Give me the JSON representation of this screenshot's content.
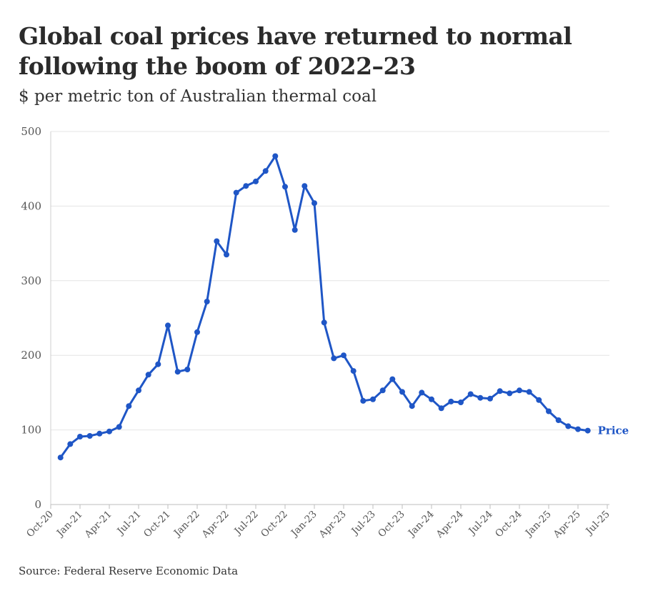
{
  "chart_data": {
    "type": "line",
    "title": "Global coal prices have returned to normal following the boom of 2022–23",
    "subtitle": "$ per metric ton of Australian thermal coal",
    "source": "Source: Federal Reserve Economic Data",
    "ylim": [
      0,
      500
    ],
    "yticks": [
      "0",
      "100",
      "200",
      "300",
      "400",
      "500"
    ],
    "xticks": [
      "Oct-20",
      "Jan-21",
      "Apr-21",
      "Jul-21",
      "Oct-21",
      "Jan-22",
      "Apr-22",
      "Jul-22",
      "Oct-22",
      "Jan-23",
      "Apr-23",
      "Jul-23",
      "Oct-23",
      "Jan-24",
      "Apr-24",
      "Jul-24",
      "Oct-24",
      "Jan-25",
      "Apr-25",
      "Jul-25"
    ],
    "series": [
      {
        "name": "Price",
        "color": "#1f56c6",
        "values": [
          63,
          81,
          91,
          92,
          95,
          98,
          104,
          132,
          153,
          174,
          188,
          240,
          178,
          181,
          231,
          272,
          353,
          335,
          418,
          427,
          433,
          447,
          467,
          426,
          368,
          427,
          404,
          244,
          196,
          200,
          179,
          139,
          141,
          153,
          168,
          151,
          132,
          150,
          141,
          129,
          138,
          137,
          148,
          143,
          142,
          152,
          149,
          153,
          151,
          140,
          125,
          113,
          105,
          101,
          99
        ]
      }
    ]
  }
}
